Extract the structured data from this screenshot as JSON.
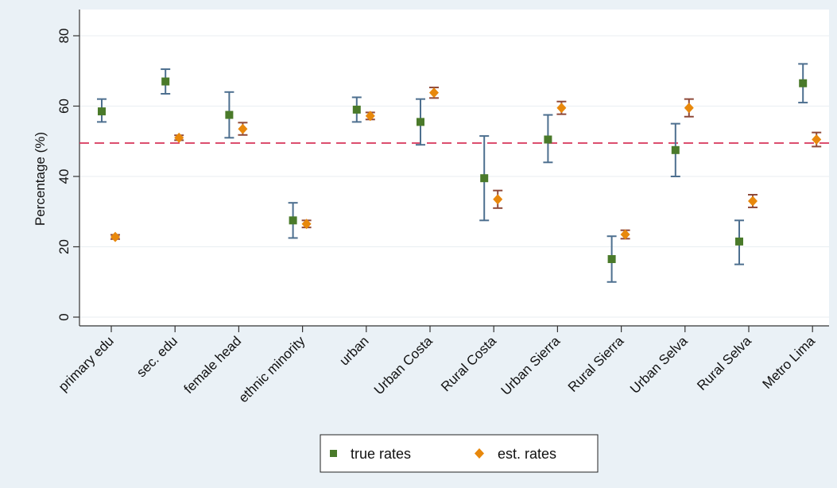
{
  "chart_data": {
    "type": "scatter",
    "ylabel": "Percentage (%)",
    "ylim": [
      0,
      80
    ],
    "yticks": [
      0,
      20,
      40,
      60,
      80
    ],
    "grid": true,
    "legend_position": "bottom",
    "reference_line": {
      "y": 49.5,
      "style": "dashed",
      "color": "#d8355a"
    },
    "categories": [
      "primary edu",
      "sec. edu",
      "female head",
      "ethnic minority",
      "urban",
      "Urban Costa",
      "Rural Costa",
      "Urban Sierra",
      "Rural Sierra",
      "Urban Selva",
      "Rural Selva",
      "Metro Lima"
    ],
    "series": [
      {
        "name": "true rates",
        "marker": "square",
        "color": "#4a7a2a",
        "errbar_color": "#4d6f8f",
        "values": [
          58.5,
          67,
          57.5,
          27.5,
          59,
          55.5,
          39.5,
          50.5,
          16.5,
          47.5,
          21.5,
          66.5
        ],
        "lower": [
          55.5,
          63.5,
          51,
          22.5,
          55.5,
          49,
          27.5,
          44,
          10,
          40,
          15,
          61
        ],
        "upper": [
          62,
          70.5,
          64,
          32.5,
          62.5,
          62,
          51.5,
          57.5,
          23,
          55,
          27.5,
          72
        ]
      },
      {
        "name": "est. rates",
        "marker": "diamond",
        "color": "#e8880c",
        "errbar_color": "#8f4a3a",
        "values": [
          22.8,
          51,
          53.5,
          26.5,
          57.2,
          63.8,
          33.5,
          59.5,
          23.5,
          59.5,
          33,
          50.5
        ],
        "lower": [
          22.2,
          50.3,
          51.8,
          25.5,
          56.2,
          62.3,
          31,
          57.7,
          22.3,
          57,
          31.2,
          48.5
        ],
        "upper": [
          23.4,
          51.7,
          55.3,
          27.5,
          58.2,
          65.3,
          36,
          61.3,
          24.7,
          62,
          34.8,
          52.5
        ]
      }
    ]
  }
}
